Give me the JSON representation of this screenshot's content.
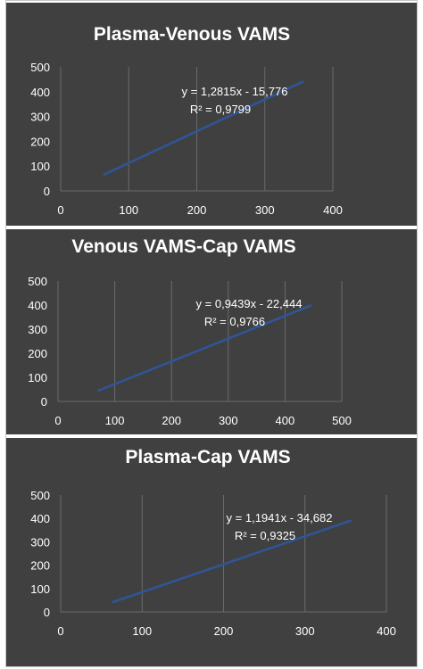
{
  "chart_data": [
    {
      "type": "scatter",
      "title": "Plasma-Venous VAMS",
      "xlim": [
        0,
        400
      ],
      "ylim": [
        0,
        500
      ],
      "x_ticks": [
        "0",
        "100",
        "200",
        "300",
        "400"
      ],
      "y_ticks": [
        "0",
        "100",
        "200",
        "300",
        "400",
        "500"
      ],
      "grid": "vertical",
      "trendline": {
        "slope": 1.2815,
        "intercept": -15.776,
        "x_range": [
          63,
          357
        ]
      },
      "equation": "y = 1,2815x - 15,776",
      "r_squared": "R² = 0,9799"
    },
    {
      "type": "scatter",
      "title": "Venous VAMS-Cap VAMS",
      "xlim": [
        0,
        500
      ],
      "ylim": [
        0,
        500
      ],
      "x_ticks": [
        "0",
        "100",
        "200",
        "300",
        "400",
        "500"
      ],
      "y_ticks": [
        "0",
        "100",
        "200",
        "300",
        "400",
        "500"
      ],
      "grid": "vertical",
      "trendline": {
        "slope": 0.9439,
        "intercept": -22.444,
        "x_range": [
          70,
          447
        ]
      },
      "equation": "y = 0,9439x - 22,444",
      "r_squared": "R² = 0,9766"
    },
    {
      "type": "scatter",
      "title": "Plasma-Cap VAMS",
      "xlim": [
        0,
        400
      ],
      "ylim": [
        0,
        500
      ],
      "x_ticks": [
        "0",
        "100",
        "200",
        "300",
        "400"
      ],
      "y_ticks": [
        "0",
        "100",
        "200",
        "300",
        "400",
        "500"
      ],
      "grid": "vertical",
      "trendline": {
        "slope": 1.1941,
        "intercept": -34.682,
        "x_range": [
          63,
          357
        ]
      },
      "equation": "y = 1,1941x - 34,682",
      "r_squared": "R² = 0,9325"
    }
  ],
  "colors": {
    "panel_bg": "#404040",
    "trendline": "#2f5597",
    "grid": "#6a6a6a",
    "text": "#ffffff"
  }
}
